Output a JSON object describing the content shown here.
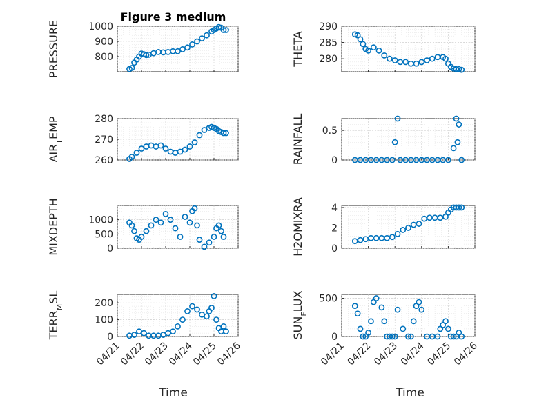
{
  "figure": {
    "title": "Figure 3 medium",
    "xlabel": "Time",
    "xticks": [
      "04/21",
      "04/22",
      "04/23",
      "04/24",
      "04/25",
      "04/26"
    ],
    "marker_color": "#0072BD"
  },
  "chart_data": [
    {
      "type": "scatter",
      "ylabel": "PRESSURE",
      "xlim": [
        0,
        5
      ],
      "ylim": [
        700,
        1000
      ],
      "yticks": [
        800,
        900,
        1000
      ],
      "x": [
        0.5,
        0.6,
        0.7,
        0.8,
        0.9,
        1.0,
        1.1,
        1.2,
        1.3,
        1.5,
        1.7,
        1.9,
        2.1,
        2.3,
        2.5,
        2.7,
        2.9,
        3.1,
        3.3,
        3.5,
        3.7,
        3.9,
        4.0,
        4.1,
        4.2,
        4.3,
        4.4,
        4.5
      ],
      "y": [
        718,
        725,
        760,
        780,
        800,
        820,
        815,
        810,
        812,
        822,
        830,
        828,
        830,
        835,
        835,
        848,
        860,
        880,
        900,
        920,
        940,
        965,
        975,
        985,
        995,
        990,
        975,
        975
      ]
    },
    {
      "type": "scatter",
      "ylabel": "THETA",
      "xlim": [
        0,
        5
      ],
      "ylim": [
        276,
        290
      ],
      "yticks": [
        280,
        285,
        290
      ],
      "x": [
        0.5,
        0.6,
        0.7,
        0.8,
        0.9,
        1.0,
        1.2,
        1.4,
        1.6,
        1.8,
        2.0,
        2.2,
        2.4,
        2.6,
        2.8,
        3.0,
        3.2,
        3.4,
        3.6,
        3.8,
        3.9,
        4.0,
        4.1,
        4.2,
        4.3,
        4.4,
        4.5
      ],
      "y": [
        287.5,
        287.2,
        286.0,
        284.5,
        283.0,
        282.5,
        283.5,
        282.5,
        281.0,
        280.0,
        279.5,
        279.0,
        279.0,
        278.5,
        278.5,
        279.0,
        279.5,
        280.0,
        280.5,
        280.5,
        280.0,
        278.5,
        277.5,
        277.0,
        276.8,
        276.8,
        276.6
      ]
    },
    {
      "type": "scatter",
      "ylabel": "AIR_TEMP",
      "xlim": [
        0,
        5
      ],
      "ylim": [
        260,
        280
      ],
      "yticks": [
        260,
        270,
        280
      ],
      "x": [
        0.5,
        0.6,
        0.8,
        1.0,
        1.2,
        1.4,
        1.6,
        1.8,
        2.0,
        2.2,
        2.4,
        2.6,
        2.8,
        3.0,
        3.2,
        3.4,
        3.6,
        3.8,
        3.9,
        4.0,
        4.1,
        4.2,
        4.3,
        4.4,
        4.5
      ],
      "y": [
        260.5,
        261.5,
        263.5,
        265.5,
        266.5,
        267.0,
        266.5,
        267.0,
        265.5,
        264.0,
        263.5,
        264.0,
        265.0,
        266.5,
        268.5,
        272.0,
        274.5,
        275.5,
        276.0,
        275.5,
        275.0,
        274.0,
        273.5,
        273.0,
        273.0
      ]
    },
    {
      "type": "scatter",
      "ylabel": "RAINFALL",
      "xlim": [
        0,
        5
      ],
      "ylim": [
        0,
        0.7
      ],
      "yticks": [
        0,
        0.5
      ],
      "x": [
        0.5,
        0.7,
        0.9,
        1.1,
        1.3,
        1.5,
        1.7,
        1.9,
        2.0,
        2.1,
        2.2,
        2.4,
        2.6,
        2.8,
        3.0,
        3.2,
        3.4,
        3.6,
        3.8,
        4.0,
        4.2,
        4.3,
        4.35,
        4.4,
        4.5
      ],
      "y": [
        0,
        0,
        0,
        0,
        0,
        0,
        0,
        0,
        0.3,
        0.7,
        0,
        0,
        0,
        0,
        0,
        0,
        0,
        0,
        0,
        0,
        0.2,
        0.7,
        0.3,
        0.6,
        0
      ]
    },
    {
      "type": "scatter",
      "ylabel": "MIXDEPTH",
      "xlim": [
        0,
        5
      ],
      "ylim": [
        0,
        1500
      ],
      "yticks": [
        0,
        500,
        1000
      ],
      "x": [
        0.5,
        0.6,
        0.7,
        0.8,
        0.9,
        1.0,
        1.2,
        1.4,
        1.6,
        1.8,
        2.0,
        2.2,
        2.4,
        2.6,
        2.8,
        3.0,
        3.1,
        3.2,
        3.3,
        3.4,
        3.6,
        3.8,
        4.0,
        4.1,
        4.2,
        4.3,
        4.4
      ],
      "y": [
        900,
        800,
        600,
        350,
        300,
        400,
        600,
        800,
        1000,
        900,
        1200,
        1000,
        700,
        400,
        1100,
        900,
        1300,
        1400,
        800,
        300,
        50,
        200,
        400,
        700,
        800,
        600,
        400
      ]
    },
    {
      "type": "scatter",
      "ylabel": "H2OMIXRA",
      "xlim": [
        0,
        5
      ],
      "ylim": [
        0,
        4.2
      ],
      "yticks": [
        0,
        2,
        4
      ],
      "x": [
        0.5,
        0.7,
        0.9,
        1.1,
        1.3,
        1.5,
        1.7,
        1.9,
        2.1,
        2.3,
        2.5,
        2.7,
        2.9,
        3.1,
        3.3,
        3.5,
        3.7,
        3.9,
        4.0,
        4.1,
        4.2,
        4.3,
        4.4,
        4.5
      ],
      "y": [
        0.7,
        0.8,
        0.9,
        1.0,
        1.0,
        1.0,
        1.0,
        1.1,
        1.4,
        1.8,
        2.0,
        2.3,
        2.4,
        2.9,
        3.0,
        3.0,
        3.0,
        3.1,
        3.5,
        3.8,
        4.0,
        4.0,
        4.0,
        4.0
      ]
    },
    {
      "type": "scatter",
      "ylabel": "TERR_MSL",
      "xlim": [
        0,
        5
      ],
      "ylim": [
        0,
        250
      ],
      "yticks": [
        0,
        100,
        200
      ],
      "x": [
        0.5,
        0.7,
        0.9,
        1.1,
        1.3,
        1.5,
        1.7,
        1.9,
        2.1,
        2.3,
        2.5,
        2.7,
        2.9,
        3.1,
        3.3,
        3.5,
        3.7,
        3.8,
        3.9,
        4.0,
        4.1,
        4.2,
        4.3,
        4.4,
        4.5
      ],
      "y": [
        5,
        10,
        30,
        20,
        5,
        5,
        5,
        10,
        20,
        30,
        60,
        100,
        150,
        180,
        160,
        130,
        120,
        150,
        170,
        240,
        100,
        50,
        30,
        60,
        30
      ]
    },
    {
      "type": "scatter",
      "ylabel": "SUN_FLUX",
      "xlim": [
        0,
        5
      ],
      "ylim": [
        0,
        550
      ],
      "yticks": [
        0,
        500
      ],
      "x": [
        0.5,
        0.6,
        0.7,
        0.8,
        0.9,
        1.0,
        1.1,
        1.2,
        1.3,
        1.5,
        1.6,
        1.7,
        1.8,
        1.9,
        2.0,
        2.1,
        2.3,
        2.5,
        2.6,
        2.7,
        2.8,
        2.9,
        3.0,
        3.2,
        3.4,
        3.6,
        3.7,
        3.8,
        3.9,
        4.0,
        4.1,
        4.2,
        4.3,
        4.4,
        4.5
      ],
      "y": [
        400,
        300,
        100,
        0,
        0,
        50,
        200,
        450,
        500,
        380,
        200,
        0,
        0,
        0,
        0,
        350,
        100,
        0,
        0,
        200,
        400,
        450,
        350,
        0,
        0,
        0,
        100,
        150,
        200,
        100,
        0,
        0,
        0,
        50,
        0
      ]
    }
  ]
}
